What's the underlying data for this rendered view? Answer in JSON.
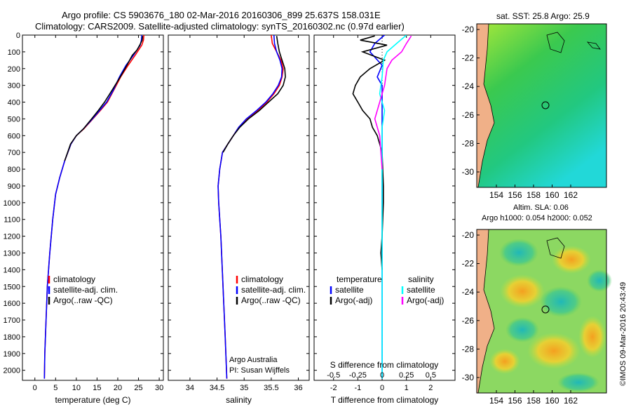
{
  "header": {
    "line1": "Argo profile: CS 5903676_180 02-Mar-2016 20160306_899 25.637S 158.031E",
    "line2": "Climatology: CARS2009. Satellite-adjusted climatology: synTS_20160302.nc (0.97d earlier)"
  },
  "colors": {
    "climatology": "#ff0000",
    "satellite": "#0000ff",
    "argo": "#000000",
    "salinity_satellite": "#00ffff",
    "salinity_argo": "#ff00ff"
  },
  "panels": {
    "temperature": {
      "xlabel": "temperature (deg C)"
    },
    "salinity": {
      "xlabel": "salinity",
      "note1": "Argo Australia",
      "note2": "PI: Susan Wijffels"
    },
    "difference": {
      "xlabel_bottom": "T difference from climatology",
      "xlabel_top": "S difference from climatology"
    }
  },
  "legend": {
    "climatology": "climatology",
    "satellite_adj": "satellite-adj. clim.",
    "argo_raw": "Argo(..raw -QC)",
    "temperature_head": "temperature",
    "salinity_head": "salinity",
    "satellite": "satellite",
    "argo_adj": "Argo(-adj)"
  },
  "maps": {
    "sst_title": "sat. SST: 25.8 Argo: 25.9",
    "sla_title1": "Altim. SLA: 0.06",
    "sla_title2": "Argo h1000: 0.054 h2000: 0.052",
    "lat_ticks": [
      "-20",
      "-22",
      "-24",
      "-26",
      "-28",
      "-30"
    ],
    "lon_ticks": [
      "154",
      "156",
      "158",
      "160",
      "162"
    ],
    "credit": "©IMOS 09-Mar-2016 20:43:49"
  },
  "chart_data": [
    {
      "type": "line",
      "name": "temperature profile",
      "xlabel": "temperature (deg C)",
      "ylabel": "",
      "xlim": [
        -3,
        31
      ],
      "ylim": [
        2060,
        0
      ],
      "y_reversed": true,
      "xticks": [
        "0",
        "5",
        "10",
        "15",
        "20",
        "25",
        "30"
      ],
      "yticks": [
        "0",
        "100",
        "200",
        "300",
        "400",
        "500",
        "600",
        "700",
        "800",
        "900",
        "1000",
        "1100",
        "1200",
        "1300",
        "1400",
        "1500",
        "1600",
        "1700",
        "1800",
        "1900",
        "2000"
      ],
      "series": [
        {
          "name": "climatology",
          "color": "#ff0000",
          "points": [
            [
              26.3,
              0
            ],
            [
              26.2,
              30
            ],
            [
              25.8,
              60
            ],
            [
              25.0,
              90
            ],
            [
              24.2,
              120
            ],
            [
              22.5,
              180
            ],
            [
              20.7,
              250
            ],
            [
              19.0,
              330
            ],
            [
              17.5,
              400
            ],
            [
              15.8,
              450
            ],
            [
              14.0,
              500
            ],
            [
              11.8,
              560
            ],
            [
              10.0,
              600
            ],
            [
              8.7,
              650
            ],
            [
              7.2,
              750
            ],
            [
              6.0,
              850
            ],
            [
              5.0,
              950
            ],
            [
              4.3,
              1100
            ],
            [
              3.6,
              1300
            ],
            [
              3.0,
              1500
            ],
            [
              2.7,
              1700
            ],
            [
              2.4,
              1900
            ],
            [
              2.3,
              2050
            ]
          ]
        },
        {
          "name": "satellite-adj. clim.",
          "color": "#0000ff",
          "points": [
            [
              25.8,
              0
            ],
            [
              25.7,
              30
            ],
            [
              25.4,
              60
            ],
            [
              24.6,
              90
            ],
            [
              23.8,
              120
            ],
            [
              22.0,
              180
            ],
            [
              20.4,
              250
            ],
            [
              18.9,
              330
            ],
            [
              17.3,
              400
            ],
            [
              15.6,
              450
            ],
            [
              13.9,
              500
            ],
            [
              11.7,
              560
            ],
            [
              10.0,
              600
            ],
            [
              8.7,
              650
            ],
            [
              7.2,
              750
            ],
            [
              6.0,
              850
            ],
            [
              5.0,
              950
            ],
            [
              4.3,
              1100
            ],
            [
              3.6,
              1300
            ],
            [
              3.0,
              1500
            ],
            [
              2.7,
              1700
            ],
            [
              2.4,
              1900
            ],
            [
              2.3,
              2050
            ]
          ]
        },
        {
          "name": "Argo(..raw -QC)",
          "color": "#000000",
          "points": [
            [
              26.0,
              5
            ],
            [
              25.9,
              30
            ],
            [
              25.3,
              60
            ],
            [
              24.6,
              90
            ],
            [
              23.5,
              120
            ],
            [
              22.2,
              180
            ],
            [
              20.6,
              250
            ],
            [
              18.6,
              330
            ],
            [
              16.8,
              400
            ],
            [
              15.3,
              450
            ],
            [
              13.7,
              500
            ],
            [
              11.7,
              560
            ],
            [
              10.0,
              600
            ],
            [
              8.6,
              650
            ],
            [
              7.2,
              750
            ]
          ]
        }
      ]
    },
    {
      "type": "line",
      "name": "salinity profile",
      "xlabel": "salinity",
      "ylabel": "",
      "xlim": [
        33.6,
        36.2
      ],
      "ylim": [
        2060,
        0
      ],
      "y_reversed": true,
      "xticks": [
        "34",
        "34.5",
        "35",
        "35.5",
        "36"
      ],
      "series": [
        {
          "name": "climatology",
          "color": "#ff0000",
          "points": [
            [
              35.5,
              0
            ],
            [
              35.52,
              50
            ],
            [
              35.6,
              100
            ],
            [
              35.68,
              150
            ],
            [
              35.72,
              200
            ],
            [
              35.7,
              250
            ],
            [
              35.65,
              300
            ],
            [
              35.55,
              350
            ],
            [
              35.42,
              400
            ],
            [
              35.25,
              450
            ],
            [
              35.05,
              500
            ],
            [
              34.9,
              550
            ],
            [
              34.8,
              600
            ],
            [
              34.7,
              650
            ],
            [
              34.6,
              700
            ],
            [
              34.55,
              800
            ],
            [
              34.52,
              900
            ],
            [
              34.53,
              1000
            ],
            [
              34.57,
              1200
            ],
            [
              34.61,
              1500
            ],
            [
              34.65,
              1800
            ],
            [
              34.68,
              2050
            ]
          ]
        },
        {
          "name": "satellite-adj. clim.",
          "color": "#0000ff",
          "points": [
            [
              35.55,
              0
            ],
            [
              35.56,
              50
            ],
            [
              35.6,
              100
            ],
            [
              35.66,
              150
            ],
            [
              35.7,
              200
            ],
            [
              35.69,
              250
            ],
            [
              35.63,
              300
            ],
            [
              35.53,
              350
            ],
            [
              35.4,
              400
            ],
            [
              35.23,
              450
            ],
            [
              35.04,
              500
            ],
            [
              34.9,
              550
            ],
            [
              34.8,
              600
            ],
            [
              34.7,
              650
            ],
            [
              34.6,
              700
            ],
            [
              34.55,
              800
            ],
            [
              34.52,
              900
            ],
            [
              34.53,
              1000
            ],
            [
              34.57,
              1200
            ],
            [
              34.61,
              1500
            ],
            [
              34.65,
              1800
            ],
            [
              34.68,
              2050
            ]
          ]
        },
        {
          "name": "Argo(..raw -QC)",
          "color": "#000000",
          "points": [
            [
              35.6,
              5
            ],
            [
              35.62,
              50
            ],
            [
              35.65,
              100
            ],
            [
              35.7,
              150
            ],
            [
              35.75,
              200
            ],
            [
              35.76,
              250
            ],
            [
              35.72,
              300
            ],
            [
              35.62,
              350
            ],
            [
              35.45,
              400
            ],
            [
              35.28,
              450
            ],
            [
              35.08,
              500
            ],
            [
              34.92,
              550
            ],
            [
              34.8,
              600
            ],
            [
              34.7,
              650
            ],
            [
              34.61,
              700
            ]
          ]
        }
      ]
    },
    {
      "type": "line",
      "name": "difference from climatology",
      "xlabel": "T difference from climatology",
      "x2label": "S difference from climatology",
      "xlim": [
        -2.8,
        3.0
      ],
      "ylim": [
        2060,
        0
      ],
      "y_reversed": true,
      "xticks": [
        "-2",
        "-1",
        "0",
        "1",
        "2"
      ],
      "x2ticks": [
        "-0.5",
        "-0.25",
        "0",
        "0.25",
        "0.5"
      ],
      "series": [
        {
          "name": "temperature satellite",
          "color": "#0000ff",
          "points": [
            [
              0.1,
              0
            ],
            [
              -0.3,
              50
            ],
            [
              -0.5,
              100
            ],
            [
              0.0,
              180
            ],
            [
              -0.2,
              250
            ],
            [
              0.0,
              300
            ],
            [
              0.0,
              2050
            ]
          ]
        },
        {
          "name": "temperature Argo(-adj)",
          "color": "#000000",
          "points": [
            [
              -0.3,
              5
            ],
            [
              -0.9,
              30
            ],
            [
              0.2,
              60
            ],
            [
              -0.8,
              100
            ],
            [
              0.1,
              150
            ],
            [
              -0.5,
              200
            ],
            [
              -0.9,
              250
            ],
            [
              -1.1,
              300
            ],
            [
              -1.2,
              350
            ],
            [
              -1.0,
              400
            ],
            [
              -0.8,
              450
            ],
            [
              -0.5,
              500
            ],
            [
              -0.4,
              550
            ],
            [
              -0.2,
              600
            ],
            [
              0.0,
              700
            ],
            [
              0.05,
              900
            ],
            [
              0.05,
              1000
            ],
            [
              0.0,
              1200
            ],
            [
              -0.05,
              1300
            ],
            [
              0.0,
              1400
            ]
          ]
        },
        {
          "name": "salinity satellite",
          "color": "#00ffff",
          "points": [
            [
              1.0,
              0
            ],
            [
              0.6,
              50
            ],
            [
              0.2,
              100
            ],
            [
              0.05,
              150
            ],
            [
              0.0,
              250
            ],
            [
              -0.1,
              350
            ],
            [
              0.1,
              450
            ],
            [
              0.0,
              550
            ],
            [
              0.0,
              2050
            ]
          ]
        },
        {
          "name": "salinity Argo(-adj)",
          "color": "#ff00ff",
          "points": [
            [
              1.2,
              5
            ],
            [
              1.0,
              50
            ],
            [
              0.8,
              100
            ],
            [
              0.4,
              150
            ],
            [
              0.2,
              200
            ],
            [
              0.1,
              300
            ],
            [
              -0.1,
              400
            ],
            [
              -0.3,
              500
            ],
            [
              -0.1,
              600
            ],
            [
              0.0,
              800
            ]
          ]
        }
      ]
    }
  ]
}
